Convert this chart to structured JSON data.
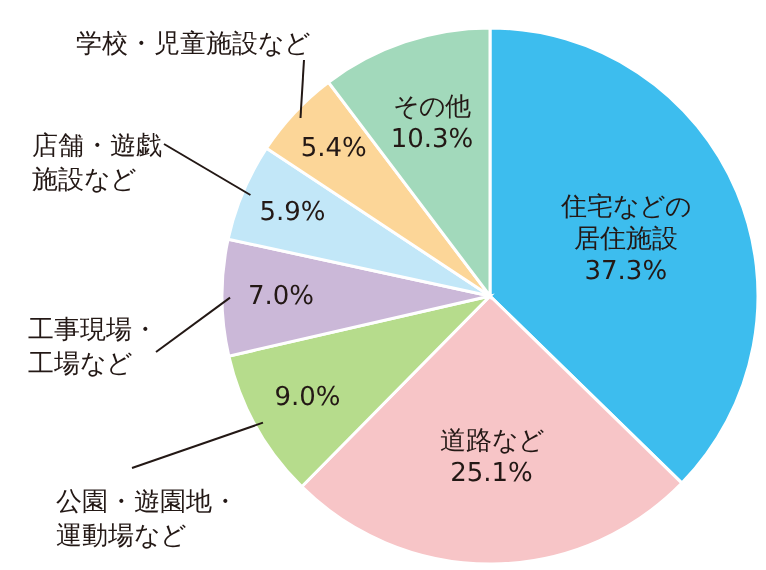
{
  "chart_data": {
    "type": "pie",
    "categories": [
      "住宅などの居住施設",
      "道路など",
      "公園・遊園地・運動場など",
      "工事現場・工場など",
      "店舗・遊戯施設など",
      "学校・児童施設など",
      "その他"
    ],
    "values": [
      37.3,
      25.1,
      9.0,
      7.0,
      5.9,
      5.4,
      10.3
    ],
    "value_labels": [
      "37.3%",
      "25.1%",
      "9.0%",
      "7.0%",
      "5.9%",
      "5.4%",
      "10.3%"
    ],
    "colors": [
      "#3dbdee",
      "#f7c5c7",
      "#b6dc8c",
      "#cbb8d8",
      "#c2e7f8",
      "#fcd698",
      "#a2d9bb"
    ]
  }
}
